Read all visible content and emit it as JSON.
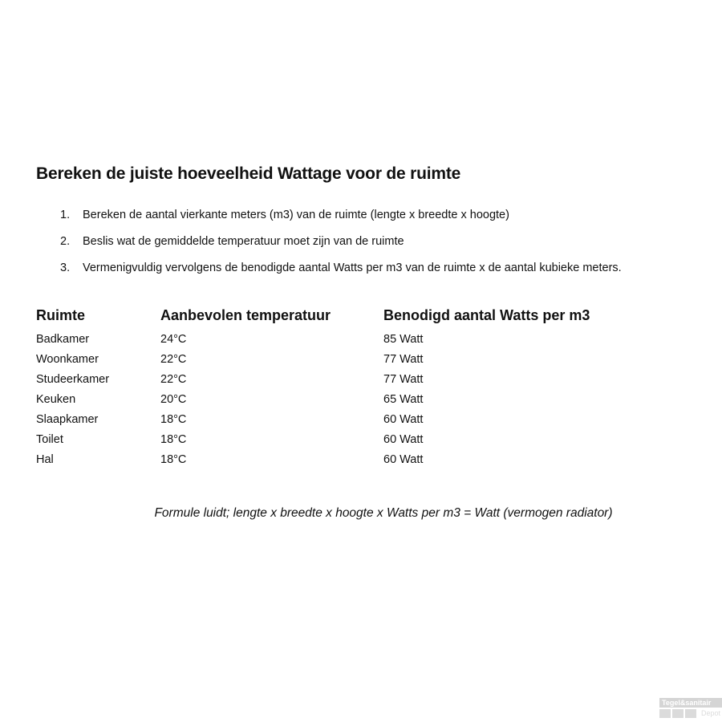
{
  "title": "Bereken de juiste hoeveelheid Wattage voor de ruimte",
  "steps": [
    {
      "num": "1.",
      "text": "Bereken de aantal vierkante meters (m3) van de ruimte (lengte x breedte x hoogte)"
    },
    {
      "num": "2.",
      "text": "Beslis wat de gemiddelde temperatuur moet zijn van de ruimte"
    },
    {
      "num": "3.",
      "text": "Vermenigvuldig vervolgens de benodigde aantal Watts per m3 van de ruimte x de aantal kubieke meters."
    }
  ],
  "table": {
    "headers": [
      "Ruimte",
      "Aanbevolen temperatuur",
      "Benodigd aantal Watts per m3"
    ],
    "rows": [
      [
        "Badkamer",
        "24°C",
        "85 Watt"
      ],
      [
        "Woonkamer",
        "22°C",
        "77 Watt"
      ],
      [
        "Studeerkamer",
        "22°C",
        "77 Watt"
      ],
      [
        "Keuken",
        "20°C",
        "65 Watt"
      ],
      [
        "Slaapkamer",
        "18°C",
        "60 Watt"
      ],
      [
        "Toilet",
        "18°C",
        "60 Watt"
      ],
      [
        "Hal",
        "18°C",
        "60 Watt"
      ]
    ]
  },
  "formula": "Formule luidt; lengte x breedte x hoogte x Watts per m3 = Watt (vermogen radiator)",
  "watermark": {
    "line1": "Tegel&sanitair",
    "line2": "Depot"
  }
}
